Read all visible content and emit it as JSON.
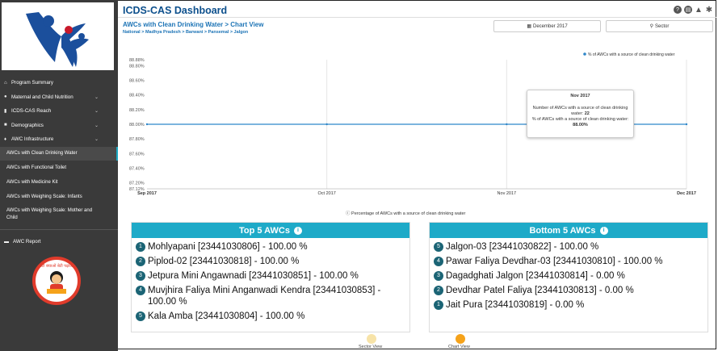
{
  "header": {
    "title": "ICDS-CAS Dashboard",
    "icons": [
      "help-icon",
      "print-icon",
      "warning-icon",
      "settings-icon"
    ]
  },
  "page": {
    "subtitle": "AWCs with Clean Drinking Water > Chart View",
    "breadcrumb": "National > Madhya Pradesh > Barwani > Pansemal > Jalgon",
    "month_filter": "December 2017",
    "view_filter": "Sector"
  },
  "sidebar": {
    "items": [
      {
        "label": "Program Summary",
        "icon": "home-icon"
      },
      {
        "label": "Maternal and Child Nutrition",
        "icon": "person-icon"
      },
      {
        "label": "ICDS-CAS Reach",
        "icon": "bar-chart-icon"
      },
      {
        "label": "Demographics",
        "icon": "group-icon"
      },
      {
        "label": "AWC Infrastructure",
        "icon": "pin-icon"
      }
    ],
    "subitems": [
      "AWCs with Clean Drinking Water",
      "AWCs with Functional Toilet",
      "AWCs with Medicine Kit",
      "AWCs with Weighing Scale: Infants",
      "AWCs with Weighing Scale: Mother and Child"
    ],
    "report": "AWC Report",
    "badge_text": "बेटी बचाओ बेटी पढ़ाओ"
  },
  "chart_data": {
    "type": "line",
    "legend": "% of AWCs with a source of clean drinking water",
    "legend_position": "top-right",
    "caption": "Percentage of AWCs with a source of clean drinking water",
    "x": [
      "Sep 2017",
      "Oct 2017",
      "Nov 2017",
      "Dec 2017"
    ],
    "series": [
      {
        "name": "% of AWCs with a source of clean drinking water",
        "values": [
          88.0,
          88.0,
          88.0,
          88.0
        ]
      }
    ],
    "ylim": [
      87.12,
      88.88
    ],
    "yticks": [
      "88.88%",
      "88.80%",
      "88.60%",
      "88.40%",
      "88.20%",
      "88.00%",
      "87.80%",
      "87.60%",
      "87.40%",
      "87.20%",
      "87.12%"
    ],
    "grid": true,
    "color": "#2e86c9",
    "tooltip": {
      "title": "Nov 2017",
      "line1": "Number of AWCs with a source of clean drinking water:",
      "count": "22",
      "line2": "% of AWCs with a source of clean drinking water:",
      "pct": "88.00%"
    }
  },
  "top5": {
    "title": "Top 5 AWCs",
    "rows": [
      {
        "rank": "1",
        "text": "Mohlyapani [23441030806] - 100.00 %"
      },
      {
        "rank": "2",
        "text": "Piplod-02 [23441030818] - 100.00 %"
      },
      {
        "rank": "3",
        "text": "Jetpura Mini Angawnadi [23441030851] - 100.00 %"
      },
      {
        "rank": "4",
        "text": "Muvjhira Faliya Mini Anganwadi Kendra [23441030853] - 100.00 %"
      },
      {
        "rank": "5",
        "text": "Kala Amba [23441030804] - 100.00 %"
      }
    ]
  },
  "bottom5": {
    "title": "Bottom 5 AWCs",
    "rows": [
      {
        "rank": "5",
        "text": "Jalgon-03 [23441030822] - 100.00 %"
      },
      {
        "rank": "4",
        "text": "Pawar Faliya Devdhar-03 [23441030810] - 100.00 %"
      },
      {
        "rank": "3",
        "text": "Dagadghati Jalgon [23441030814] - 0.00 %"
      },
      {
        "rank": "2",
        "text": "Devdhar Patel Faliya [23441030813] - 0.00 %"
      },
      {
        "rank": "1",
        "text": "Jait Pura [23441030819] - 0.00 %"
      }
    ]
  },
  "footer": {
    "sector_view": "Sector View",
    "chart_view": "Chart View",
    "colors": {
      "sector": "#f7e3a8",
      "chart": "#f5a21a"
    }
  }
}
